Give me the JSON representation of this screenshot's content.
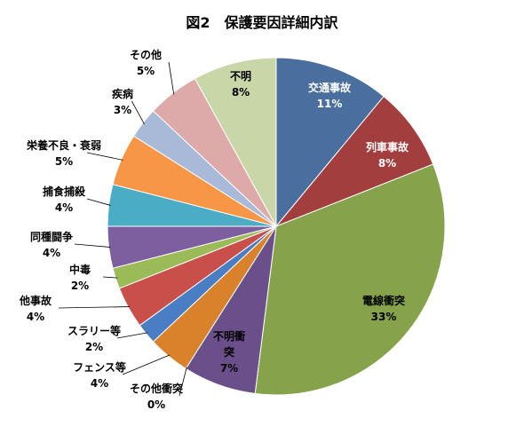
{
  "chart_data": {
    "type": "pie",
    "title": "図2　保護要因詳細内訳",
    "slices": [
      {
        "name": "交通事故",
        "value": 11,
        "label": "11%",
        "color": "#4A6E9E",
        "label_color": "#ffffff"
      },
      {
        "name": "列車事故",
        "value": 8,
        "label": "8%",
        "color": "#A23E3E",
        "label_color": "#ffffff"
      },
      {
        "name": "電線衝突",
        "value": 33,
        "label": "33%",
        "color": "#86A24A",
        "label_color": "#000000"
      },
      {
        "name": "不明衝突",
        "value": 7,
        "label": "7%",
        "color": "#6B4F8A",
        "label_color": "#000000"
      },
      {
        "name": "その他衝突",
        "value": 0,
        "label": "0%",
        "color": "#3D8FA3",
        "label_color": "#000000"
      },
      {
        "name": "フェンス等",
        "value": 4,
        "label": "4%",
        "color": "#D9822B",
        "label_color": "#000000"
      },
      {
        "name": "スラリー等",
        "value": 2,
        "label": "2%",
        "color": "#4A7EC4",
        "label_color": "#000000"
      },
      {
        "name": "他事故",
        "value": 4,
        "label": "4%",
        "color": "#C9504A",
        "label_color": "#000000"
      },
      {
        "name": "中毒",
        "value": 2,
        "label": "2%",
        "color": "#9BBB59",
        "label_color": "#000000"
      },
      {
        "name": "同種闘争",
        "value": 4,
        "label": "4%",
        "color": "#7D5FA0",
        "label_color": "#000000"
      },
      {
        "name": "捕食捕殺",
        "value": 4,
        "label": "4%",
        "color": "#4BACC6",
        "label_color": "#000000"
      },
      {
        "name": "栄養不良・衰弱",
        "value": 5,
        "label": "5%",
        "color": "#F79646",
        "label_color": "#000000"
      },
      {
        "name": "疾病",
        "value": 3,
        "label": "3%",
        "color": "#A9BAD9",
        "label_color": "#000000"
      },
      {
        "name": "その他",
        "value": 5,
        "label": "5%",
        "color": "#DDA9A9",
        "label_color": "#000000"
      },
      {
        "name": "不明",
        "value": 8,
        "label": "8%",
        "color": "#C8D6A8",
        "label_color": "#000000"
      }
    ]
  }
}
